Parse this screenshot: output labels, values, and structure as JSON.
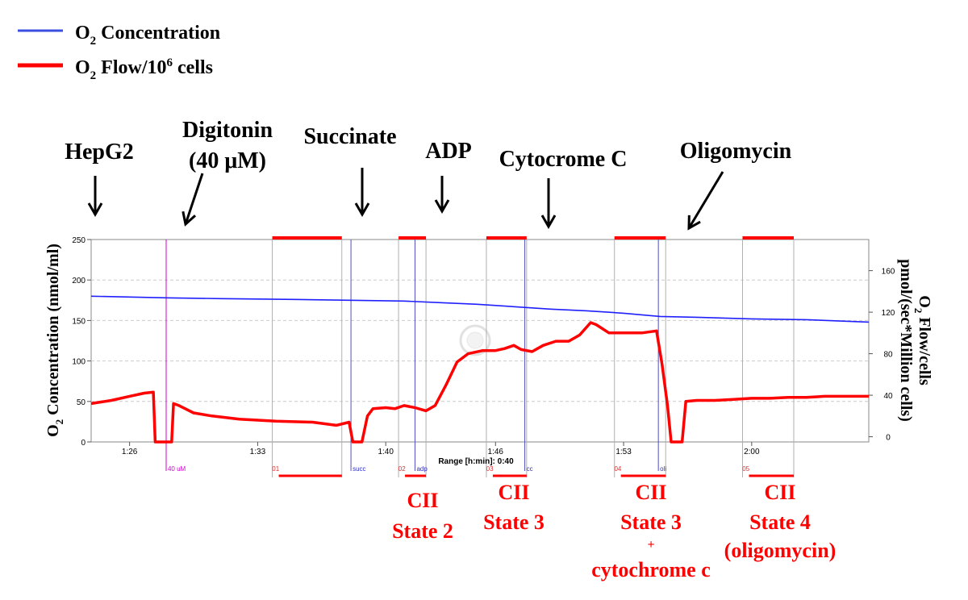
{
  "legend": {
    "items": [
      {
        "label": "O",
        "sub": "2",
        "rest": " Concentration",
        "color": "#3b4fe0"
      },
      {
        "label": "O",
        "sub": "2",
        "rest": " Flow/10",
        "sup": "6",
        "tail": " cells",
        "color": "#ff0000"
      }
    ]
  },
  "left_axis_label": {
    "main": "O",
    "sub": "2",
    "rest": " Concentration (nmol/ml)"
  },
  "right_axis_label": {
    "line1_main": "O",
    "line1_sub": "2",
    "line1_rest": " Flow/cells",
    "line2": "pmol/(sec*Million cells)"
  },
  "range_text": "Range [h:min]: 0:40",
  "annotations": [
    {
      "id": "hepg2",
      "lines": [
        "HepG2"
      ],
      "t": 85.9
    },
    {
      "id": "digitonin",
      "lines": [
        "Digitonin",
        "(40 μM)"
      ],
      "t": 87.7
    },
    {
      "id": "succinate",
      "lines": [
        "Succinate"
      ],
      "t": 98.1
    },
    {
      "id": "adp",
      "lines": [
        "ADP"
      ],
      "t": 101.6
    },
    {
      "id": "cytochrome",
      "lines": [
        "Cytocrome C"
      ],
      "t": 107.6
    },
    {
      "id": "oligomycin",
      "lines": [
        "Oligomycin"
      ],
      "t": 114.9
    }
  ],
  "marker_labels": [
    {
      "text": "40 uM",
      "t": 88.0,
      "color": "#d000d0"
    },
    {
      "text": "succ",
      "t": 98.1,
      "color": "#3030c0"
    },
    {
      "text": "adp",
      "t": 101.6,
      "color": "#3030c0"
    },
    {
      "text": "cc",
      "t": 107.6,
      "color": "#3030c0"
    },
    {
      "text": "oli",
      "t": 114.9,
      "color": "#3030c0"
    },
    {
      "text": "01",
      "t": 93.7,
      "color": "#e03030"
    },
    {
      "text": "02",
      "t": 100.6,
      "color": "#e03030"
    },
    {
      "text": "03",
      "t": 105.4,
      "color": "#e03030"
    },
    {
      "text": "04",
      "t": 112.4,
      "color": "#e03030"
    },
    {
      "text": "05",
      "t": 119.4,
      "color": "#e03030"
    }
  ],
  "state_labels": [
    {
      "id": "state2",
      "lines": [
        "CII",
        "State 2"
      ],
      "t": 101.0
    },
    {
      "id": "state3",
      "lines": [
        "CII",
        "State 3"
      ],
      "t": 105.9
    },
    {
      "id": "state3cc",
      "lines": [
        "CII",
        "State 3",
        "+",
        "cytochrome c"
      ],
      "t": 113.0
    },
    {
      "id": "state4",
      "lines": [
        "CII",
        "State 4",
        "(oligomycin)"
      ],
      "t": 119.9
    }
  ],
  "chart_data": {
    "type": "line",
    "x_unit": "h:min",
    "x_range": [
      83.9,
      126.4
    ],
    "x_ticks": [
      {
        "t": 86,
        "label": "1:26"
      },
      {
        "t": 93,
        "label": "1:33"
      },
      {
        "t": 100,
        "label": "1:40"
      },
      {
        "t": 106,
        "label": "1:46"
      },
      {
        "t": 113,
        "label": "1:53"
      },
      {
        "t": 120,
        "label": "2:00"
      }
    ],
    "y_left": {
      "ylim": [
        0,
        250
      ],
      "ticks": [
        0,
        50,
        100,
        150,
        200,
        250
      ]
    },
    "y_right": {
      "ylim": [
        -5,
        190
      ],
      "ticks": [
        0,
        40,
        80,
        120,
        160
      ]
    },
    "grid": true,
    "legend_position": "top-left",
    "event_markers": [
      {
        "label": "40 uM",
        "t": 88.0,
        "color": "#d000d0"
      },
      {
        "label": "succ",
        "t": 98.1,
        "color": "#5050c0"
      },
      {
        "label": "adp",
        "t": 101.6,
        "color": "#5050c0"
      },
      {
        "label": "cc",
        "t": 107.6,
        "color": "#5050c0"
      },
      {
        "label": "oli",
        "t": 114.9,
        "color": "#5050c0"
      }
    ],
    "selections": [
      {
        "label": "01",
        "start": 93.8,
        "end": 97.6
      },
      {
        "label": "02",
        "start": 100.7,
        "end": 102.2
      },
      {
        "label": "03",
        "start": 105.5,
        "end": 107.7
      },
      {
        "label": "04",
        "start": 112.5,
        "end": 115.3
      },
      {
        "label": "05",
        "start": 119.5,
        "end": 122.3
      }
    ],
    "series": [
      {
        "name": "O2 Concentration",
        "axis": "left",
        "color": "#2020ff",
        "points": [
          [
            83.9,
            180
          ],
          [
            86,
            179
          ],
          [
            88,
            178
          ],
          [
            91,
            177
          ],
          [
            95,
            176
          ],
          [
            98,
            175
          ],
          [
            101,
            174
          ],
          [
            103,
            172
          ],
          [
            105,
            170
          ],
          [
            107,
            167
          ],
          [
            109,
            164
          ],
          [
            111,
            162
          ],
          [
            113,
            159
          ],
          [
            115,
            155
          ],
          [
            117,
            154
          ],
          [
            120,
            152
          ],
          [
            123,
            151
          ],
          [
            126.4,
            148
          ]
        ]
      },
      {
        "name": "O2 Flow/10^6 cells",
        "axis": "right",
        "color": "#ff0000",
        "points": [
          [
            83.9,
            32
          ],
          [
            85,
            35
          ],
          [
            86,
            39
          ],
          [
            86.8,
            42
          ],
          [
            87.3,
            43
          ],
          [
            87.4,
            -5
          ],
          [
            88.3,
            -5
          ],
          [
            88.4,
            32
          ],
          [
            88.7,
            30
          ],
          [
            89.5,
            23
          ],
          [
            90.5,
            20
          ],
          [
            92,
            17
          ],
          [
            94,
            15
          ],
          [
            96,
            14
          ],
          [
            97.3,
            11
          ],
          [
            98,
            14
          ],
          [
            98.2,
            -5
          ],
          [
            98.7,
            -5
          ],
          [
            99,
            20
          ],
          [
            99.3,
            27
          ],
          [
            100,
            28
          ],
          [
            100.5,
            27
          ],
          [
            101,
            30
          ],
          [
            101.6,
            28
          ],
          [
            102.2,
            25
          ],
          [
            102.7,
            30
          ],
          [
            103.3,
            50
          ],
          [
            103.9,
            72
          ],
          [
            104.5,
            80
          ],
          [
            105.3,
            83
          ],
          [
            106,
            83
          ],
          [
            106.5,
            85
          ],
          [
            107,
            88
          ],
          [
            107.4,
            84
          ],
          [
            108,
            82
          ],
          [
            108.6,
            88
          ],
          [
            109.3,
            92
          ],
          [
            110,
            92
          ],
          [
            110.6,
            98
          ],
          [
            111.2,
            110
          ],
          [
            111.5,
            108
          ],
          [
            112.2,
            100
          ],
          [
            113,
            100
          ],
          [
            114,
            100
          ],
          [
            114.8,
            102
          ],
          [
            115.1,
            70
          ],
          [
            115.4,
            30
          ],
          [
            115.6,
            -5
          ],
          [
            116.2,
            -5
          ],
          [
            116.4,
            34
          ],
          [
            117,
            35
          ],
          [
            118,
            35
          ],
          [
            119,
            36
          ],
          [
            120,
            37
          ],
          [
            121,
            37
          ],
          [
            122,
            38
          ],
          [
            123,
            38
          ],
          [
            124,
            39
          ],
          [
            125,
            39
          ],
          [
            126.4,
            39
          ]
        ]
      }
    ]
  }
}
